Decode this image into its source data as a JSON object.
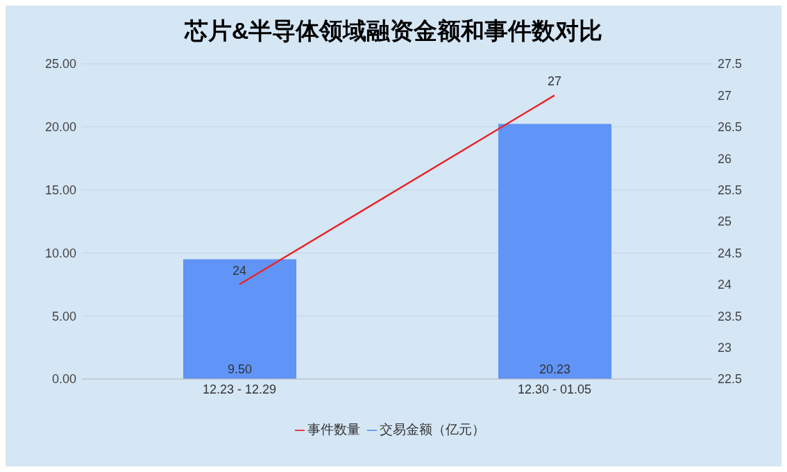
{
  "chart_data": {
    "type": "bar",
    "title": "芯片&半导体领域融资金额和事件数对比",
    "categories": [
      "12.23 - 12.29",
      "12.30 - 01.05"
    ],
    "series": [
      {
        "name": "交易金额（亿元）",
        "color": "#6094f6",
        "values": [
          9.5,
          20.23
        ],
        "value_labels": [
          "9.50",
          "20.23"
        ]
      },
      {
        "name": "事件数量",
        "type": "line",
        "axis": "y2",
        "color": "#e8262a",
        "values": [
          24,
          27
        ],
        "value_labels": [
          "24",
          "27"
        ]
      }
    ],
    "ylim": [
      0,
      25
    ],
    "yticks": [
      {
        "value": 0,
        "label": "0.00"
      },
      {
        "value": 5,
        "label": "5.00"
      },
      {
        "value": 10,
        "label": "10.00"
      },
      {
        "value": 15,
        "label": "15.00"
      },
      {
        "value": 20,
        "label": "20.00"
      },
      {
        "value": 25,
        "label": "25.00"
      }
    ],
    "y2lim": [
      22.5,
      27.5
    ],
    "y2ticks": [
      22.5,
      23,
      23.5,
      24,
      24.5,
      25,
      25.5,
      26,
      26.5,
      27,
      27.5
    ],
    "grid": "y",
    "legend": "bottom",
    "marker": "none"
  }
}
